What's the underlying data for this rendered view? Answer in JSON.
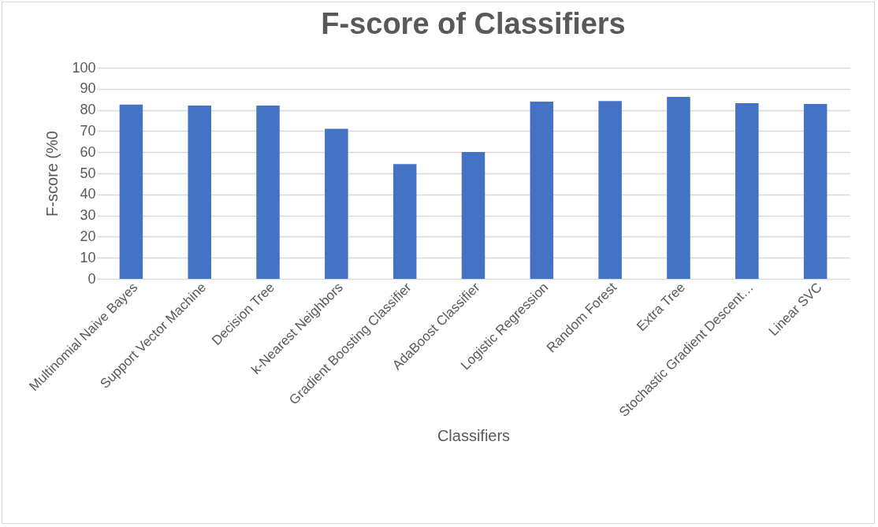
{
  "chart_data": {
    "type": "bar",
    "title": "F-score of Classifiers",
    "xlabel": "Classifiers",
    "ylabel": "F-score (%0",
    "categories": [
      "Multinomial Naive Bayes",
      "Support Vector Machine",
      "Decision Tree",
      "k-Nearest Neighbors",
      "Gradient Boosting Classifier",
      "AdaBoost Classifier",
      "Logistic Regression",
      "Random Forest",
      "Extra Tree",
      "Stochastic Gradient Descent…",
      "Linear SVC"
    ],
    "values": [
      82.6,
      82.1,
      82.1,
      71.1,
      54.4,
      60.1,
      84.0,
      84.2,
      86.2,
      83.2,
      82.8
    ],
    "color": "#4472c4",
    "ylim": [
      0,
      100
    ],
    "yticks": [
      0,
      10,
      20,
      30,
      40,
      50,
      60,
      70,
      80,
      90,
      100
    ],
    "grid": "y"
  }
}
